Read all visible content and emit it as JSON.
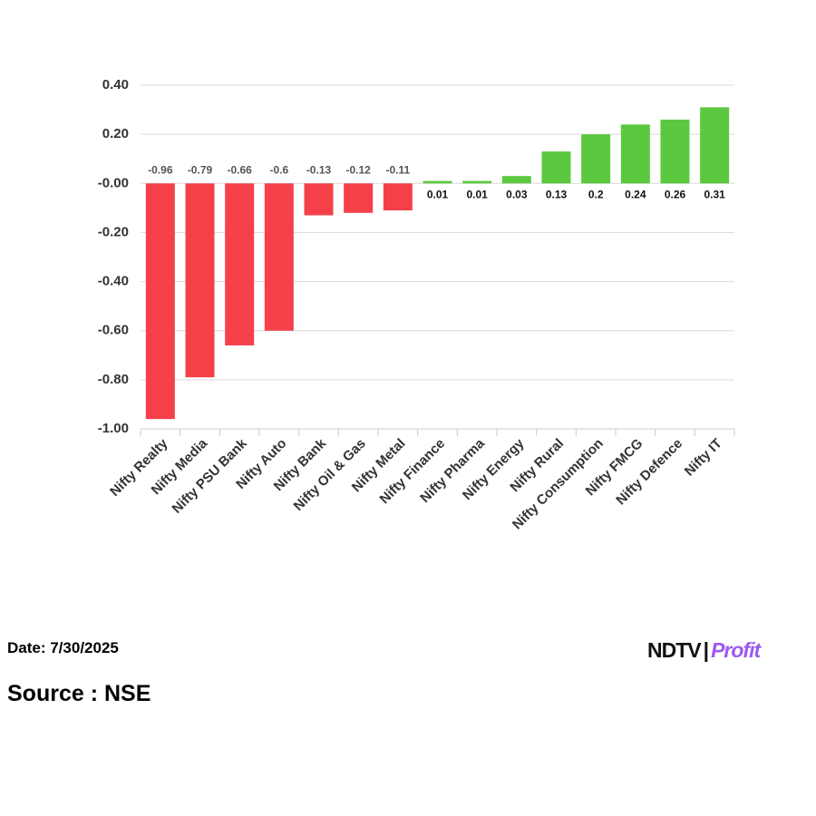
{
  "chart_data": {
    "type": "bar",
    "categories": [
      "Nifty Realty",
      "Nifty Media",
      "Nifty PSU Bank",
      "Nifty Auto",
      "Nifty Bank",
      "Nifty Oil & Gas",
      "Nifty Metal",
      "Nifty Finance",
      "Nifty Pharma",
      "Nifty Energy",
      "Nifty Rural",
      "Nifty Consumption",
      "Nifty FMCG",
      "Nifty Defence",
      "Nifty IT"
    ],
    "values": [
      -0.96,
      -0.79,
      -0.66,
      -0.6,
      -0.13,
      -0.12,
      -0.11,
      0.01,
      0.01,
      0.03,
      0.13,
      0.2,
      0.24,
      0.26,
      0.31
    ],
    "colors": [
      "#f5404a",
      "#f5404a",
      "#f5404a",
      "#f5404a",
      "#f5404a",
      "#f5404a",
      "#f5404a",
      "#5cc83f",
      "#5cc83f",
      "#5cc83f",
      "#5cc83f",
      "#5cc83f",
      "#5cc83f",
      "#5cc83f",
      "#5cc83f"
    ],
    "ylim": [
      -1,
      0.4
    ],
    "yticks": [
      {
        "value": 0.4,
        "label": "0.40"
      },
      {
        "value": 0.2,
        "label": "0.20"
      },
      {
        "value": 0,
        "label": "-0.00"
      },
      {
        "value": -0.2,
        "label": "-0.20"
      },
      {
        "value": -0.4,
        "label": "-0.40"
      },
      {
        "value": -0.6,
        "label": "-0.60"
      },
      {
        "value": -0.8,
        "label": "-0.80"
      },
      {
        "value": -1,
        "label": "-1.00"
      }
    ],
    "grid": true
  },
  "footer": {
    "date": "Date: 7/30/2025",
    "source": "Source : NSE",
    "logo_left": "NDTV",
    "logo_right": "Profit"
  }
}
